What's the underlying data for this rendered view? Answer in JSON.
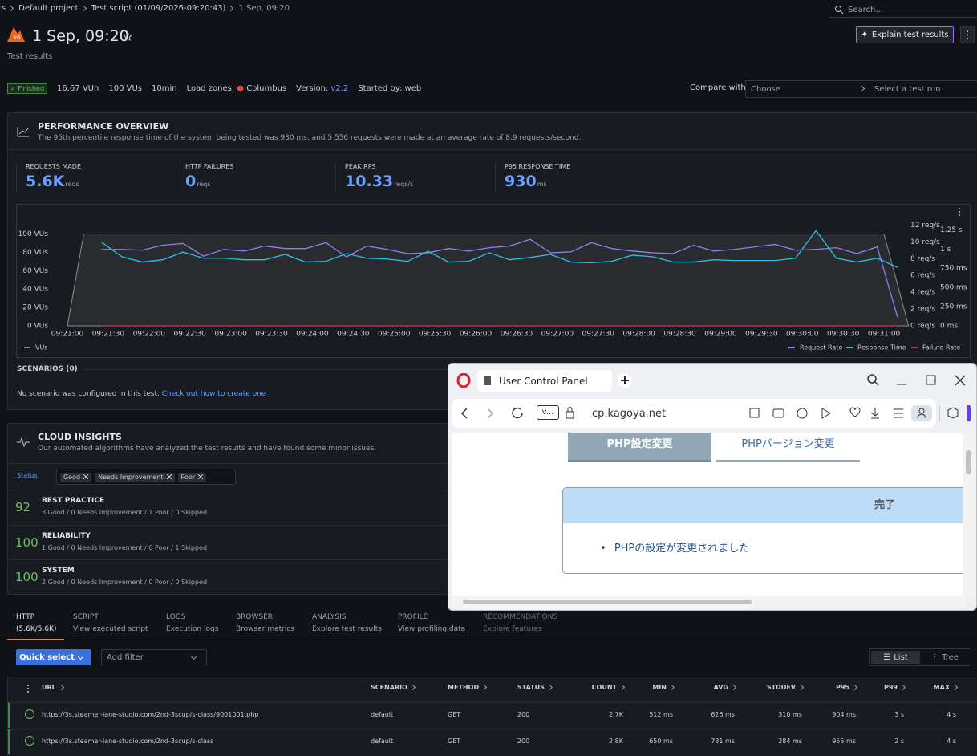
{
  "breadcrumb": [
    "ts",
    "Default project",
    "Test script (01/09/2026-09:20:43)",
    "1 Sep, 09:20"
  ],
  "search_placeholder": "Search...",
  "header": {
    "title": "1 Sep, 09:20",
    "subtitle": "Test results",
    "explain_button": "Explain test results"
  },
  "meta": {
    "status": "Finished",
    "vuh": "16.67 VUh",
    "vus": "100 VUs",
    "duration": "10min",
    "load_zones_label": "Load zones:",
    "load_zone": "Columbus",
    "version_label": "Version:",
    "version": "v2.2",
    "started_by": "Started by: web",
    "compare_label": "Compare with",
    "compare_choose": "Choose",
    "compare_run": "Select a test run"
  },
  "performance": {
    "title": "PERFORMANCE OVERVIEW",
    "description": "The 95th percentile response time of the system being tested was 930 ms, and 5 556 requests were made at an average rate of 8.9 requests/second.",
    "metrics": [
      {
        "label": "REQUESTS MADE",
        "value": "5.6K",
        "unit": "reqs"
      },
      {
        "label": "HTTP FAILURES",
        "value": "0",
        "unit": "reqs"
      },
      {
        "label": "PEAK RPS",
        "value": "10.33",
        "unit": "reqs/s"
      },
      {
        "label": "P95 RESPONSE TIME",
        "value": "930",
        "unit": "ms"
      }
    ]
  },
  "chart_data": {
    "type": "line",
    "xlim": [
      "09:21:00",
      "09:31:20"
    ],
    "xticks": [
      "09:21:00",
      "09:21:30",
      "09:22:00",
      "09:22:30",
      "09:23:00",
      "09:23:30",
      "09:24:00",
      "09:24:30",
      "09:25:00",
      "09:25:30",
      "09:26:00",
      "09:26:30",
      "09:27:00",
      "09:27:30",
      "09:28:00",
      "09:28:30",
      "09:29:00",
      "09:29:30",
      "09:30:00",
      "09:30:30",
      "09:31:00"
    ],
    "ylim": [
      0,
      117
    ],
    "yticks": [
      {
        "value": 0,
        "label": "0 VUs"
      },
      {
        "value": 20,
        "label": "20 VUs"
      },
      {
        "value": 40,
        "label": "40 VUs"
      },
      {
        "value": 60,
        "label": "60 VUs"
      },
      {
        "value": 80,
        "label": "80 VUs"
      },
      {
        "value": 100,
        "label": "100 VUs"
      }
    ],
    "y2lim": [
      0,
      12.8
    ],
    "y2ticks": [
      {
        "value": 0,
        "label": "0 req/s"
      },
      {
        "value": 2,
        "label": "2 req/s"
      },
      {
        "value": 4,
        "label": "4 req/s"
      },
      {
        "value": 6,
        "label": "6 req/s"
      },
      {
        "value": 8,
        "label": "8 req/s"
      },
      {
        "value": 10,
        "label": "10 req/s"
      },
      {
        "value": 12,
        "label": "12 req/s"
      }
    ],
    "y3lim": [
      0,
      1400
    ],
    "y3ticks": [
      {
        "value": 0,
        "label": "0 ms"
      },
      {
        "value": 250,
        "label": "250 ms"
      },
      {
        "value": 500,
        "label": "500 ms"
      },
      {
        "value": 750,
        "label": "750 ms"
      },
      {
        "value": 1000,
        "label": "1 s"
      },
      {
        "value": 1250,
        "label": "1.25 s"
      }
    ],
    "grid": false,
    "x": [
      "09:21:25",
      "09:21:40",
      "09:21:55",
      "09:22:10",
      "09:22:25",
      "09:22:40",
      "09:22:55",
      "09:23:10",
      "09:23:25",
      "09:23:40",
      "09:23:55",
      "09:24:10",
      "09:24:25",
      "09:24:40",
      "09:24:55",
      "09:25:10",
      "09:25:25",
      "09:25:40",
      "09:25:55",
      "09:26:10",
      "09:26:25",
      "09:26:40",
      "09:26:55",
      "09:27:10",
      "09:27:25",
      "09:27:40",
      "09:27:55",
      "09:28:10",
      "09:28:25",
      "09:28:40",
      "09:28:55",
      "09:29:10",
      "09:29:25",
      "09:29:40",
      "09:29:55",
      "09:30:10",
      "09:30:25",
      "09:30:40",
      "09:30:55",
      "09:31:10"
    ],
    "series": [
      {
        "name": "VUs",
        "color": "#8e8e8e",
        "axis": "y",
        "area": true,
        "x": [
          "09:21:00",
          "09:21:12",
          "09:31:00",
          "09:31:18"
        ],
        "values": [
          0,
          100,
          100,
          0
        ]
      },
      {
        "name": "Request Rate",
        "color": "#8f7ff7",
        "axis": "y2",
        "values": [
          9.1,
          9.1,
          9.0,
          9.6,
          9.8,
          8.3,
          9.1,
          8.9,
          9.5,
          9.2,
          9.2,
          9.9,
          8.2,
          9.5,
          9.1,
          8.6,
          8.7,
          9.2,
          8.9,
          9.3,
          9.5,
          10.3,
          8.7,
          8.8,
          9.9,
          9.2,
          8.9,
          8.7,
          8.6,
          9.6,
          8.9,
          9.1,
          9.4,
          9.7,
          9.0,
          9.1,
          9.3,
          8.6,
          9.4,
          1.0
        ]
      },
      {
        "name": "Response Time",
        "color": "#25c2e6",
        "axis": "y3",
        "values": [
          1090,
          900,
          830,
          860,
          960,
          880,
          880,
          860,
          860,
          930,
          830,
          840,
          940,
          880,
          870,
          840,
          970,
          830,
          840,
          950,
          860,
          890,
          930,
          830,
          820,
          840,
          920,
          900,
          830,
          830,
          860,
          850,
          850,
          850,
          880,
          1240,
          880,
          830,
          880,
          760
        ]
      },
      {
        "name": "Failure Rate",
        "color": "#e8245c",
        "axis": "y2",
        "values": [
          0,
          0,
          0,
          0,
          0,
          0,
          0,
          0,
          0,
          0,
          0,
          0,
          0,
          0,
          0,
          0,
          0,
          0,
          0,
          0,
          0,
          0,
          0,
          0,
          0,
          0,
          0,
          0,
          0,
          0,
          0,
          0,
          0,
          0,
          0,
          0,
          0,
          0,
          0,
          0
        ]
      }
    ]
  },
  "scenarios": {
    "title": "SCENARIOS (0)",
    "text": "No scenario was configured in this test.",
    "link": "Check out how to create one"
  },
  "insights": {
    "title": "CLOUD INSIGHTS",
    "description": "Our automated algorithms have analyzed the test results and have found some minor issues.",
    "status_label": "Status",
    "chips": [
      "Good",
      "Needs Improvement",
      "Poor"
    ],
    "rows": [
      {
        "score": "92",
        "name": "BEST PRACTICE",
        "detail": "3 Good / 0 Needs Improvement / 1 Poor / 0 Skipped"
      },
      {
        "score": "100",
        "name": "RELIABILITY",
        "detail": "1 Good / 0 Needs Improvement / 0 Poor / 1 Skipped"
      },
      {
        "score": "100",
        "name": "SYSTEM",
        "detail": "2 Good / 0 Needs Improvement / 0 Poor / 0 Skipped"
      }
    ]
  },
  "tabs": [
    {
      "title": "HTTP",
      "sub": "(5.6K/5.6K)"
    },
    {
      "title": "SCRIPT",
      "sub": "View executed script"
    },
    {
      "title": "LOGS",
      "sub": "Execution logs"
    },
    {
      "title": "BROWSER",
      "sub": "Browser metrics"
    },
    {
      "title": "ANALYSIS",
      "sub": "Explore test results"
    },
    {
      "title": "PROFILE",
      "sub": "View profiling data"
    },
    {
      "title": "RECOMMENDATIONS",
      "sub": "Explore features"
    }
  ],
  "toolbar": {
    "quick_select": "Quick select",
    "add_filter": "Add filter",
    "list": "List",
    "tree": "Tree"
  },
  "table": {
    "columns": [
      "URL",
      "SCENARIO",
      "METHOD",
      "STATUS",
      "COUNT",
      "MIN",
      "AVG",
      "STDDEV",
      "P95",
      "P99",
      "MAX"
    ],
    "rows": [
      [
        "https://3s.steamer-lane-studio.com/2nd-3scup/s-class/9001001.php",
        "default",
        "GET",
        "200",
        "2.7K",
        "512 ms",
        "626 ms",
        "310 ms",
        "904 ms",
        "3 s",
        "4 s"
      ],
      [
        "https://3s.steamer-lane-studio.com/2nd-3scup/s-class",
        "default",
        "GET",
        "200",
        "2.8K",
        "650 ms",
        "781 ms",
        "284 ms",
        "955 ms",
        "2 s",
        "4 s"
      ]
    ]
  },
  "browser": {
    "tab_title": "User Control Panel",
    "site_badge": "v...",
    "url": "cp.kagoya.net",
    "nav": [
      "PHP設定変更",
      "PHPバージョン変更"
    ],
    "box_title": "完了",
    "message": "PHPの設定が変更されました"
  }
}
